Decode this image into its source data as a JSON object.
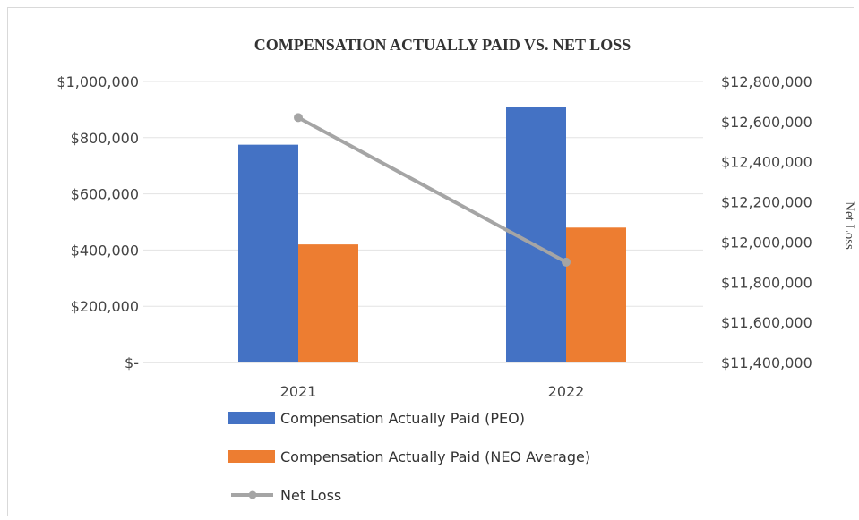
{
  "chart_data": {
    "type": "bar",
    "title": "COMPENSATION ACTUALLY PAID VS. NET LOSS",
    "categories": [
      "2021",
      "2022"
    ],
    "series": [
      {
        "name": "Compensation Actually Paid (PEO)",
        "type": "bar",
        "axis": "left",
        "color": "#4472C4",
        "values": [
          775000,
          910000
        ]
      },
      {
        "name": "Compensation Actually Paid (NEO Average)",
        "type": "bar",
        "axis": "left",
        "color": "#ED7D31",
        "values": [
          420000,
          480000
        ]
      },
      {
        "name": "Net Loss",
        "type": "line",
        "axis": "right",
        "color": "#A5A5A5",
        "values": [
          12620000,
          11900000
        ]
      }
    ],
    "left_axis": {
      "ylim": [
        0,
        1000000
      ],
      "ticks": [
        0,
        200000,
        400000,
        600000,
        800000,
        1000000
      ],
      "tick_labels": [
        "$-",
        "$200,000",
        "$400,000",
        "$600,000",
        "$800,000",
        "$1,000,000"
      ]
    },
    "right_axis": {
      "label": "Net Loss",
      "ylim": [
        11400000,
        12800000
      ],
      "ticks": [
        11400000,
        11600000,
        11800000,
        12000000,
        12200000,
        12400000,
        12600000,
        12800000
      ],
      "tick_labels": [
        "$11,400,000",
        "$11,600,000",
        "$11,800,000",
        "$12,000,000",
        "$12,200,000",
        "$12,400,000",
        "$12,600,000",
        "$12,800,000"
      ]
    },
    "grid": true,
    "legend_position": "bottom"
  }
}
